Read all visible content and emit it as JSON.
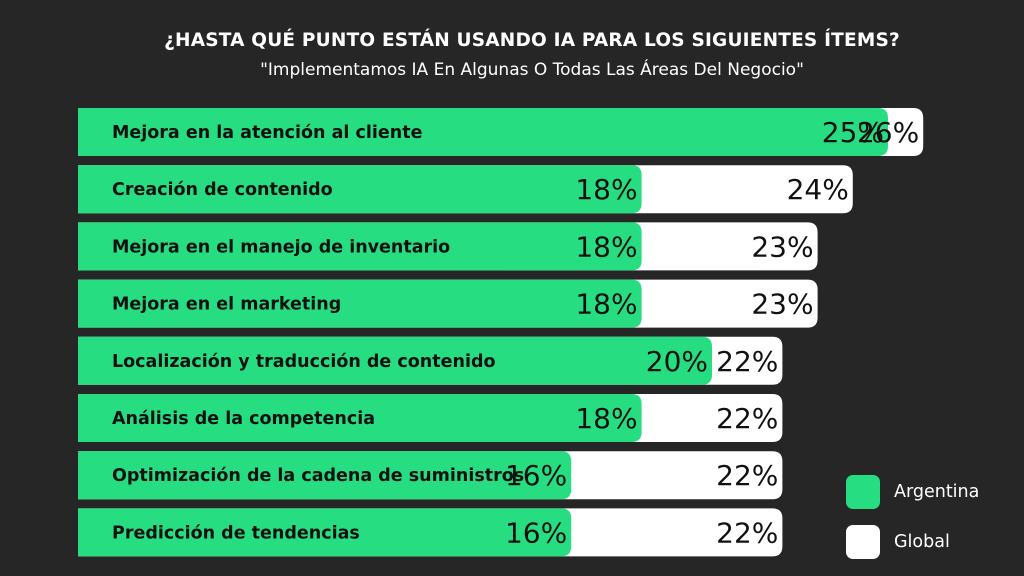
{
  "title": "¿HASTA QUÉ PUNTO ESTÁN USANDO IA PARA LOS SIGUIENTES ÍTEMS?",
  "subtitle": "\"Implementamos IA En Algunas O Todas Las Áreas Del Negocio\"",
  "colors": {
    "argentina": "#26de81",
    "global": "#ffffff",
    "background": "#262626"
  },
  "legend": {
    "argentina": "Argentina",
    "global": "Global"
  },
  "chart_data": {
    "type": "bar",
    "orientation": "horizontal",
    "title": "¿HASTA QUÉ PUNTO ESTÁN USANDO IA PARA LOS SIGUIENTES ÍTEMS?",
    "subtitle": "\"Implementamos IA En Algunas O Todas Las Áreas Del Negocio\"",
    "categories": [
      "Mejora en la atención al cliente",
      "Creación de contenido",
      "Mejora en el manejo de inventario",
      "Mejora en el marketing",
      "Localización y traducción de contenido",
      "Análisis de la competencia",
      "Optimización de la cadena de suministros",
      "Predicción de tendencias"
    ],
    "series": [
      {
        "name": "Argentina",
        "values": [
          25,
          18,
          18,
          18,
          20,
          18,
          16,
          16
        ],
        "labels": [
          "25%",
          "18%",
          "18%",
          "18%",
          "20%",
          "18%",
          "16%",
          "16%"
        ]
      },
      {
        "name": "Global",
        "values": [
          26,
          24,
          23,
          23,
          22,
          22,
          22,
          22
        ],
        "labels": [
          "26%",
          "24%",
          "23%",
          "23%",
          "22%",
          "22%",
          "22%",
          "22%"
        ]
      }
    ],
    "legend_position": "bottom-right",
    "grid": false
  }
}
